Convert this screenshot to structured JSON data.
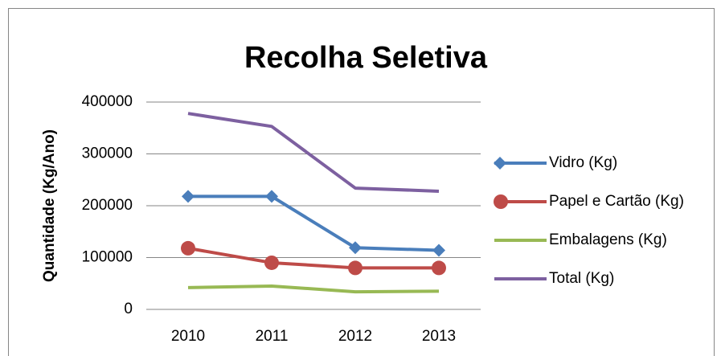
{
  "chart_data": {
    "type": "line",
    "title": "Recolha Seletiva",
    "y_label": "Quantidade (Kg/Ano)",
    "categories": [
      "2010",
      "2011",
      "2012",
      "2013"
    ],
    "series": [
      {
        "name": "Vidro (Kg)",
        "color": "#4a7ebb",
        "marker": "diamond",
        "values": [
          218000,
          218000,
          119000,
          114000
        ]
      },
      {
        "name": "Papel e Cartão (Kg)",
        "color": "#be4b48",
        "marker": "circle",
        "values": [
          118000,
          90000,
          80000,
          80000
        ]
      },
      {
        "name": "Embalagens (Kg)",
        "color": "#98b954",
        "values": [
          42000,
          45000,
          34000,
          35000
        ]
      },
      {
        "name": "Total (Kg)",
        "color": "#7d60a0",
        "values": [
          378000,
          353000,
          234000,
          228000
        ]
      }
    ],
    "ylim": [
      0,
      400000
    ],
    "yticks": [
      0,
      100000,
      200000,
      300000,
      400000
    ],
    "grid": true,
    "legend": "right"
  }
}
